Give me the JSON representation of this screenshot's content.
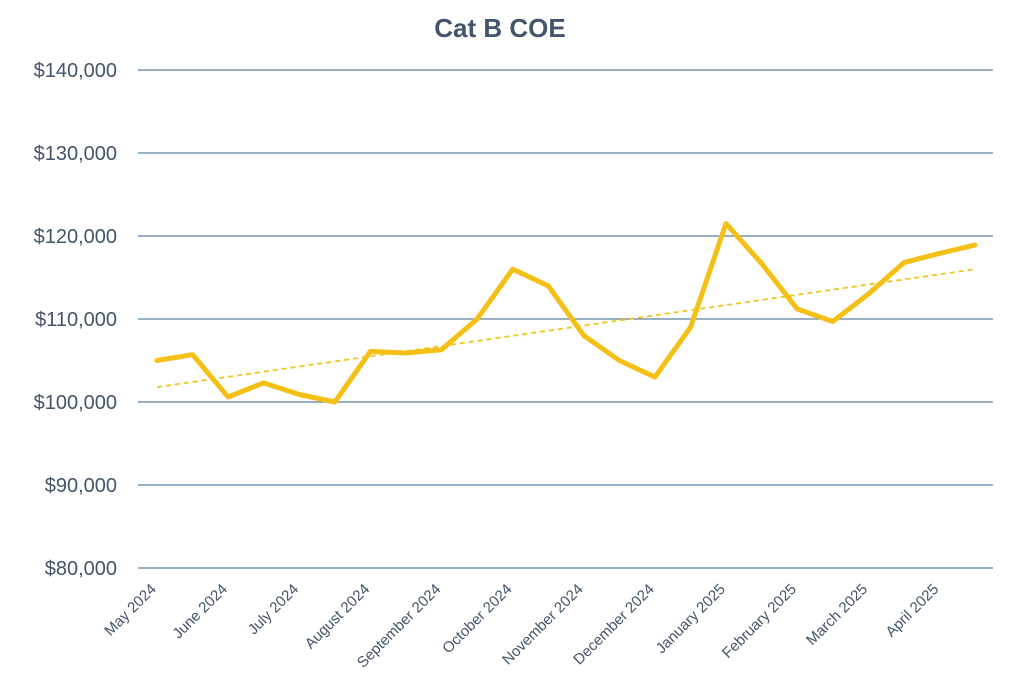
{
  "chart_data": {
    "type": "line",
    "title": "Cat B COE",
    "xlabel": "",
    "ylabel": "",
    "ylim": [
      80000,
      140000
    ],
    "y_ticks": [
      80000,
      90000,
      100000,
      110000,
      120000,
      130000,
      140000
    ],
    "y_tick_labels": [
      "$80,000",
      "$90,000",
      "$100,000",
      "$110,000",
      "$120,000",
      "$130,000",
      "$140,000"
    ],
    "categories": [
      "May 2024",
      "June 2024",
      "July 2024",
      "August 2024",
      "September 2024",
      "October 2024",
      "November 2024",
      "December 2024",
      "January 2025",
      "February 2025",
      "March 2025",
      "April 2025"
    ],
    "x": [
      0,
      0.5,
      1,
      1.5,
      2,
      2.5,
      3,
      3.5,
      4,
      4.5,
      5,
      5.5,
      6,
      6.5,
      7,
      7.5,
      8,
      8.5,
      9,
      9.5,
      10,
      10.5,
      11,
      11.5
    ],
    "series": [
      {
        "values": [
          105000,
          105700,
          100600,
          102300,
          100900,
          100000,
          106100,
          105900,
          106300,
          110000,
          116000,
          114000,
          108000,
          105000,
          103000,
          109000,
          121500,
          116700,
          111200,
          109700,
          113000,
          116800,
          117900,
          118900
        ]
      }
    ],
    "trendline": {
      "type": "linear",
      "start": 101800,
      "end": 116000
    },
    "grid": true,
    "legend": "none",
    "colors": {
      "series": "#f5c016",
      "trend": "#f2c51a",
      "grid": "#5f7fa0",
      "text": "#44546a"
    }
  }
}
